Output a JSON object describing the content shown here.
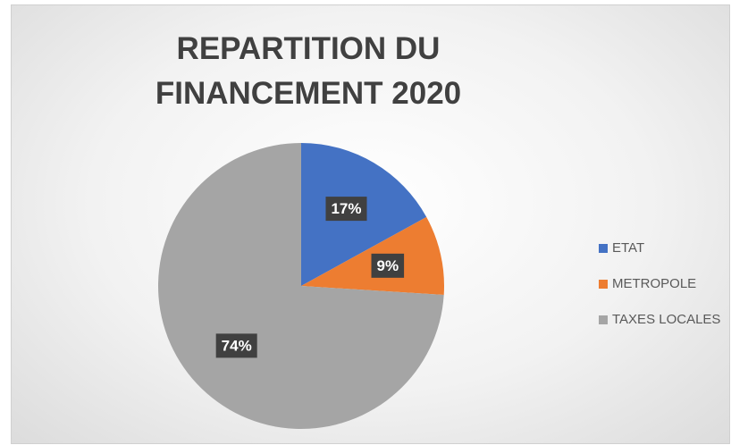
{
  "chart_data": {
    "type": "pie",
    "title": "REPARTITION DU FINANCEMENT 2020",
    "categories": [
      "ETAT",
      "METROPOLE",
      "TAXES LOCALES"
    ],
    "values": [
      17,
      9,
      74
    ],
    "value_labels": [
      "17%",
      "9%",
      "74%"
    ],
    "colors": [
      "#4472c4",
      "#ed7d31",
      "#a5a5a5"
    ],
    "legend": "right"
  }
}
